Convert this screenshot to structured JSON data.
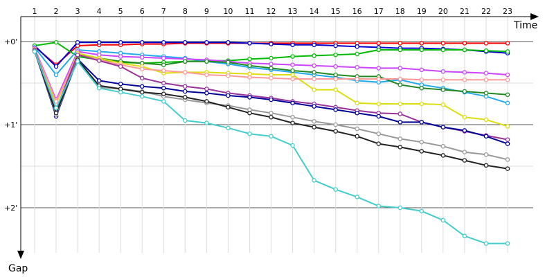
{
  "chart_data": {
    "type": "line",
    "xlabel": "Time",
    "ylabel": "Gap",
    "x_ticks": [
      "1",
      "2",
      "3",
      "4",
      "5",
      "6",
      "7",
      "8",
      "9",
      "10",
      "11",
      "12",
      "13",
      "14",
      "15",
      "16",
      "17",
      "18",
      "19",
      "20",
      "21",
      "22",
      "23"
    ],
    "y_ticks": [
      "+0'",
      "+1'",
      "+2'"
    ],
    "ylim": [
      0,
      2.5
    ],
    "grid": true,
    "series": [
      {
        "color": "#ff0000",
        "values": [
          0.06,
          0.28,
          0.05,
          0.04,
          0.04,
          0.03,
          0.03,
          0.02,
          0.02,
          0.02,
          0.02,
          0.02,
          0.02,
          0.02,
          0.02,
          0.02,
          0.02,
          0.02,
          0.02,
          0.02,
          0.02,
          0.02,
          0.02
        ]
      },
      {
        "color": "#0000cc",
        "values": [
          0.05,
          0.3,
          0.01,
          0.01,
          0.01,
          0.01,
          0.01,
          0.01,
          0.01,
          0.01,
          0.02,
          0.03,
          0.04,
          0.04,
          0.05,
          0.06,
          0.07,
          0.08,
          0.08,
          0.09,
          0.1,
          0.12,
          0.14
        ]
      },
      {
        "color": "#00bb00",
        "values": [
          0.05,
          0.01,
          0.18,
          0.22,
          0.25,
          0.26,
          0.25,
          0.24,
          0.23,
          0.23,
          0.21,
          0.2,
          0.18,
          0.17,
          0.16,
          0.15,
          0.1,
          0.1,
          0.1,
          0.1,
          0.1,
          0.11,
          0.12
        ]
      },
      {
        "color": "#22aaee",
        "values": [
          0.07,
          0.4,
          0.1,
          0.12,
          0.14,
          0.16,
          0.18,
          0.2,
          0.24,
          0.27,
          0.31,
          0.34,
          0.37,
          0.4,
          0.43,
          0.47,
          0.49,
          0.46,
          0.52,
          0.56,
          0.61,
          0.66,
          0.74
        ]
      },
      {
        "color": "#cc44ff",
        "values": [
          0.08,
          0.7,
          0.12,
          0.16,
          0.18,
          0.19,
          0.2,
          0.21,
          0.22,
          0.24,
          0.26,
          0.27,
          0.28,
          0.29,
          0.3,
          0.31,
          0.32,
          0.32,
          0.34,
          0.36,
          0.37,
          0.38,
          0.4
        ]
      },
      {
        "color": "#228822",
        "values": [
          0.1,
          0.85,
          0.15,
          0.2,
          0.24,
          0.26,
          0.28,
          0.24,
          0.24,
          0.25,
          0.29,
          0.32,
          0.35,
          0.37,
          0.4,
          0.42,
          0.42,
          0.52,
          0.56,
          0.58,
          0.6,
          0.62,
          0.64
        ]
      },
      {
        "color": "#dddd11",
        "values": [
          0.09,
          0.75,
          0.14,
          0.2,
          0.26,
          0.3,
          0.38,
          0.37,
          0.37,
          0.38,
          0.39,
          0.4,
          0.4,
          0.58,
          0.58,
          0.74,
          0.75,
          0.75,
          0.75,
          0.76,
          0.91,
          0.94,
          1.02
        ]
      },
      {
        "color": "#ff9999",
        "values": [
          0.09,
          0.72,
          0.16,
          0.22,
          0.28,
          0.33,
          0.35,
          0.37,
          0.4,
          0.41,
          0.43,
          0.44,
          0.45,
          0.45,
          0.45,
          0.45,
          0.45,
          0.45,
          0.46,
          0.46,
          0.46,
          0.46,
          0.46
        ]
      },
      {
        "color": "#993399",
        "values": [
          0.1,
          0.82,
          0.16,
          0.23,
          0.3,
          0.44,
          0.5,
          0.54,
          0.57,
          0.62,
          0.65,
          0.68,
          0.72,
          0.75,
          0.79,
          0.83,
          0.86,
          0.87,
          0.97,
          1.03,
          1.08,
          1.13,
          1.18
        ]
      },
      {
        "color": "#000099",
        "values": [
          0.11,
          0.9,
          0.21,
          0.47,
          0.51,
          0.54,
          0.56,
          0.6,
          0.62,
          0.65,
          0.67,
          0.7,
          0.74,
          0.78,
          0.82,
          0.86,
          0.9,
          0.97,
          0.97,
          1.03,
          1.07,
          1.14,
          1.23
        ]
      },
      {
        "color": "#999999",
        "values": [
          0.11,
          0.88,
          0.21,
          0.55,
          0.57,
          0.6,
          0.66,
          0.7,
          0.74,
          0.77,
          0.82,
          0.86,
          0.91,
          0.96,
          1.0,
          1.05,
          1.11,
          1.17,
          1.21,
          1.26,
          1.33,
          1.36,
          1.42
        ]
      },
      {
        "color": "#222222",
        "values": [
          0.12,
          0.86,
          0.22,
          0.53,
          0.57,
          0.61,
          0.63,
          0.67,
          0.72,
          0.79,
          0.86,
          0.91,
          0.98,
          1.03,
          1.08,
          1.14,
          1.23,
          1.27,
          1.32,
          1.37,
          1.43,
          1.49,
          1.53
        ]
      },
      {
        "color": "#44cccc",
        "values": [
          0.12,
          0.8,
          0.24,
          0.56,
          0.61,
          0.66,
          0.72,
          0.95,
          0.98,
          1.04,
          1.11,
          1.14,
          1.25,
          1.67,
          1.78,
          1.87,
          1.98,
          2.0,
          2.04,
          2.15,
          2.34,
          2.43,
          2.43
        ]
      }
    ]
  }
}
